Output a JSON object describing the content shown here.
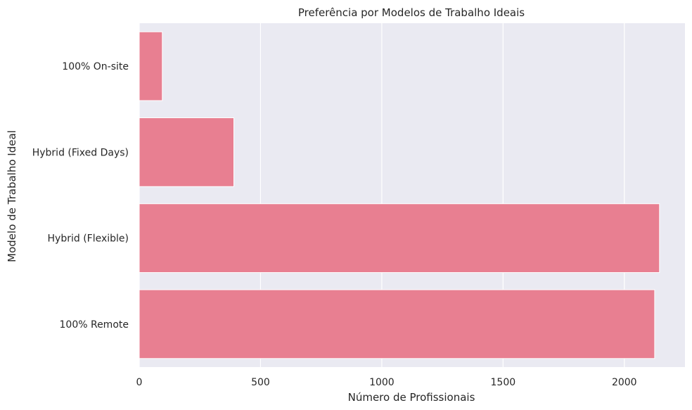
{
  "chart_data": {
    "type": "bar",
    "orientation": "horizontal",
    "title": "Preferência por Modelos de Trabalho Ideais",
    "xlabel": "Número de Profissionais",
    "ylabel": "Modelo de Trabalho Ideal",
    "categories": [
      "100% On-site",
      "Hybrid (Fixed Days)",
      "Hybrid (Flexible)",
      "100% Remote"
    ],
    "values": [
      95,
      390,
      2145,
      2125
    ],
    "xlim": [
      0,
      2250
    ],
    "xticks": [
      0,
      500,
      1000,
      1500,
      2000
    ],
    "grid": true,
    "colors": {
      "bar": "#e87f91",
      "background": "#eaeaf2",
      "grid": "#ffffff",
      "text": "#262626"
    }
  }
}
